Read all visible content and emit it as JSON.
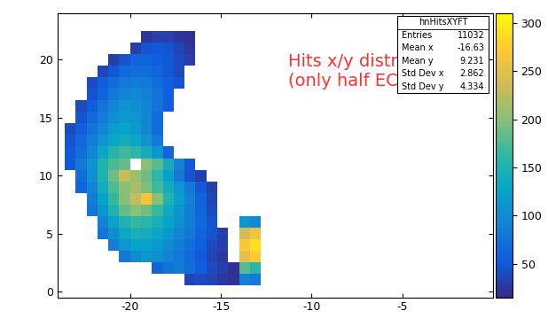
{
  "chart_data": {
    "type": "heatmap",
    "annotation": "Hits x/y distribution\n(only half ECAL on)",
    "stats_box": {
      "name": "hnHitsXYFT",
      "rows": [
        {
          "label": "Entries",
          "value": 11032
        },
        {
          "label": "Mean x",
          "value": -16.63
        },
        {
          "label": "Mean y",
          "value": 9.231
        },
        {
          "label": "Std Dev x",
          "value": 2.862
        },
        {
          "label": "Std Dev y",
          "value": 4.334
        }
      ]
    },
    "xlim": [
      -24,
      0
    ],
    "ylim": [
      -0.5,
      24
    ],
    "xticks": [
      -20,
      -15,
      -10,
      -5
    ],
    "yticks": [
      0,
      5,
      10,
      15,
      20
    ],
    "x_edges": [
      -23.6,
      -23.0,
      -22.4,
      -21.8,
      -21.2,
      -20.6,
      -20.0,
      -19.4,
      -18.8,
      -18.2,
      -17.6,
      -17.0,
      -16.4,
      -15.8,
      -15.2,
      -14.6,
      -14.0,
      -13.4,
      -12.8
    ],
    "y_edges": [
      0.5,
      1.5,
      2.5,
      3.5,
      4.5,
      5.5,
      6.5,
      7.5,
      8.5,
      9.5,
      10.5,
      11.5,
      12.5,
      13.5,
      14.5,
      15.5,
      16.5,
      17.5,
      18.5,
      19.5,
      20.5,
      21.5,
      22.5
    ],
    "cells": [
      [
        null,
        null,
        null,
        null,
        null,
        null,
        null,
        null,
        null,
        null,
        null,
        35,
        40,
        35,
        25,
        20,
        90,
        80
      ],
      [
        null,
        null,
        null,
        null,
        null,
        null,
        null,
        null,
        60,
        75,
        80,
        70,
        55,
        40,
        30,
        20,
        180,
        160
      ],
      [
        null,
        null,
        null,
        null,
        null,
        80,
        100,
        110,
        105,
        90,
        80,
        65,
        50,
        35,
        25,
        null,
        250,
        275
      ],
      [
        null,
        null,
        null,
        null,
        85,
        110,
        125,
        125,
        115,
        100,
        85,
        70,
        55,
        40,
        30,
        null,
        270,
        290
      ],
      [
        null,
        null,
        null,
        75,
        105,
        130,
        145,
        140,
        130,
        115,
        95,
        80,
        60,
        45,
        30,
        null,
        240,
        260
      ],
      [
        null,
        null,
        null,
        90,
        125,
        150,
        165,
        160,
        145,
        125,
        105,
        85,
        65,
        45,
        null,
        null,
        110,
        100
      ],
      [
        null,
        null,
        75,
        110,
        150,
        185,
        200,
        190,
        165,
        135,
        110,
        85,
        60,
        40,
        null,
        null,
        null,
        null
      ],
      [
        null,
        null,
        85,
        125,
        165,
        200,
        230,
        265,
        200,
        150,
        120,
        90,
        60,
        35,
        null,
        null,
        null,
        null
      ],
      [
        null,
        60,
        95,
        140,
        175,
        200,
        215,
        195,
        170,
        140,
        110,
        80,
        50,
        30,
        null,
        null,
        null,
        null
      ],
      [
        null,
        70,
        105,
        150,
        190,
        230,
        210,
        190,
        160,
        120,
        80,
        45,
        30,
        null,
        null,
        null,
        null,
        null
      ],
      [
        50,
        80,
        110,
        150,
        175,
        185,
        null,
        200,
        180,
        140,
        90,
        50,
        null,
        null,
        null,
        null,
        null,
        null
      ],
      [
        50,
        70,
        95,
        130,
        155,
        170,
        160,
        140,
        110,
        60,
        null,
        null,
        null,
        null,
        null,
        null,
        null,
        null
      ],
      [
        45,
        65,
        85,
        110,
        130,
        140,
        130,
        110,
        80,
        null,
        null,
        null,
        null,
        null,
        null,
        null,
        null,
        null
      ],
      [
        40,
        55,
        75,
        95,
        120,
        125,
        115,
        95,
        70,
        null,
        null,
        null,
        null,
        null,
        null,
        null,
        null,
        null
      ],
      [
        null,
        45,
        65,
        85,
        105,
        115,
        110,
        95,
        70,
        null,
        null,
        null,
        null,
        null,
        null,
        null,
        null,
        null
      ],
      [
        null,
        40,
        55,
        75,
        95,
        110,
        105,
        95,
        75,
        55,
        null,
        null,
        null,
        null,
        null,
        null,
        null,
        null
      ],
      [
        null,
        null,
        45,
        60,
        80,
        95,
        100,
        90,
        75,
        55,
        null,
        null,
        null,
        null,
        null,
        null,
        null,
        null
      ],
      [
        null,
        null,
        40,
        55,
        70,
        80,
        85,
        80,
        70,
        55,
        45,
        null,
        null,
        null,
        null,
        null,
        null,
        null
      ],
      [
        null,
        null,
        null,
        35,
        50,
        65,
        70,
        70,
        60,
        50,
        40,
        null,
        null,
        null,
        null,
        null,
        null,
        null
      ],
      [
        null,
        null,
        null,
        null,
        30,
        45,
        60,
        60,
        55,
        50,
        40,
        30,
        null,
        null,
        null,
        null,
        null,
        null
      ],
      [
        null,
        null,
        null,
        null,
        null,
        null,
        30,
        45,
        50,
        45,
        35,
        25,
        null,
        null,
        null,
        null,
        null,
        null
      ],
      [
        null,
        null,
        null,
        null,
        null,
        null,
        null,
        25,
        30,
        30,
        25,
        20,
        null,
        null,
        null,
        null,
        null,
        null
      ]
    ],
    "zlim": [
      15,
      310
    ],
    "zticks": [
      50,
      100,
      150,
      200,
      250,
      300
    ]
  }
}
